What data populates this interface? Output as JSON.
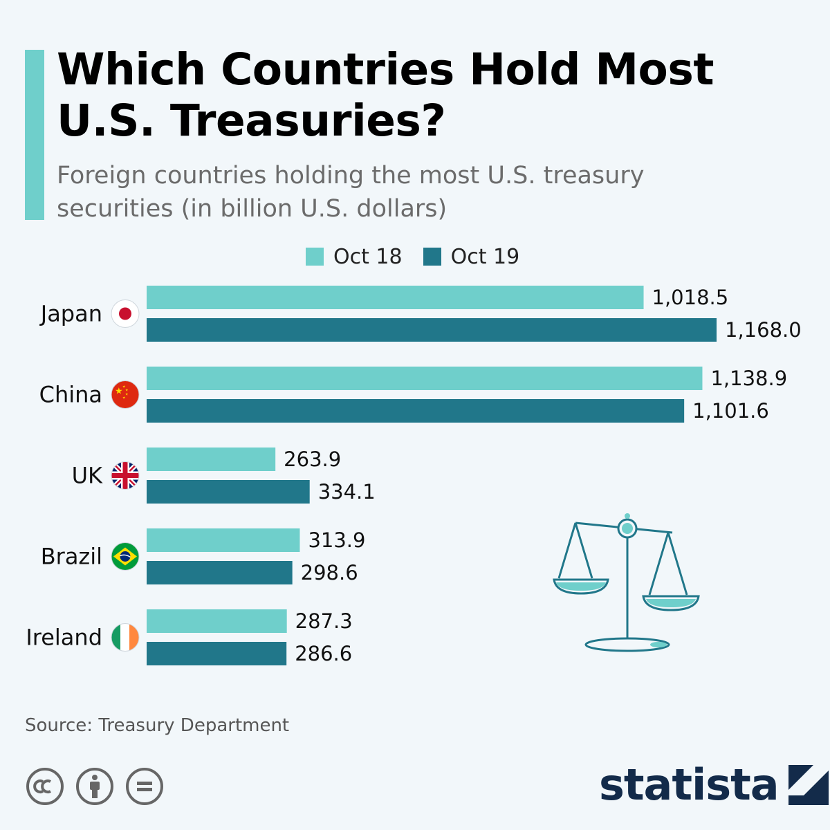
{
  "title": "Which Countries Hold Most U.S. Treasuries?",
  "subtitle": "Foreign countries holding the most U.S. treasury securities (in billion U.S. dollars)",
  "source": "Source: Treasury Department",
  "brand": "statista",
  "colors": {
    "accent": "#6fcfcb",
    "oct18": "#6fcfcb",
    "oct19": "#21778a",
    "background": "#f2f7fa"
  },
  "icons": [
    "cc-icon",
    "attribution-icon",
    "no-derivatives-icon",
    "scale-icon",
    "statista-logo-icon"
  ],
  "chart_data": {
    "type": "bar",
    "orientation": "horizontal",
    "categories": [
      "Japan",
      "China",
      "UK",
      "Brazil",
      "Ireland"
    ],
    "series": [
      {
        "name": "Oct 18",
        "values": [
          1018.5,
          1138.9,
          263.9,
          313.9,
          287.3
        ],
        "labels": [
          "1,018.5",
          "1,138.9",
          "263.9",
          "313.9",
          "287.3"
        ]
      },
      {
        "name": "Oct 19",
        "values": [
          1168.0,
          1101.6,
          334.1,
          298.6,
          286.6
        ],
        "labels": [
          "1,168.0",
          "1,101.6",
          "334.1",
          "298.6",
          "286.6"
        ]
      }
    ],
    "grid": false,
    "legend": "top-center"
  }
}
